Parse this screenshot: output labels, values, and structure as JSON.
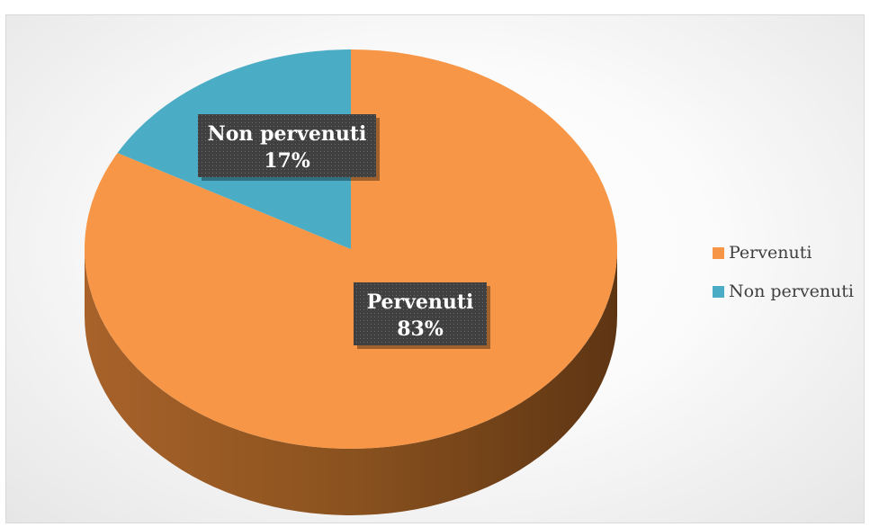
{
  "chart_data": {
    "type": "pie",
    "categories": [
      "Pervenuti",
      "Non pervenuti"
    ],
    "values": [
      83,
      17
    ],
    "data_labels": [
      {
        "category": "Pervenuti",
        "percent": "83%"
      },
      {
        "category": "Non pervenuti",
        "percent": "17%"
      }
    ],
    "legend": {
      "placement": "right",
      "items": [
        "Pervenuti",
        "Non pervenuti"
      ]
    },
    "colors": {
      "Pervenuti": "#f79646",
      "Pervenuti_side": "#7f4a1c",
      "Non pervenuti": "#4bacc6",
      "label_background": "#404040"
    },
    "style": "3d"
  }
}
